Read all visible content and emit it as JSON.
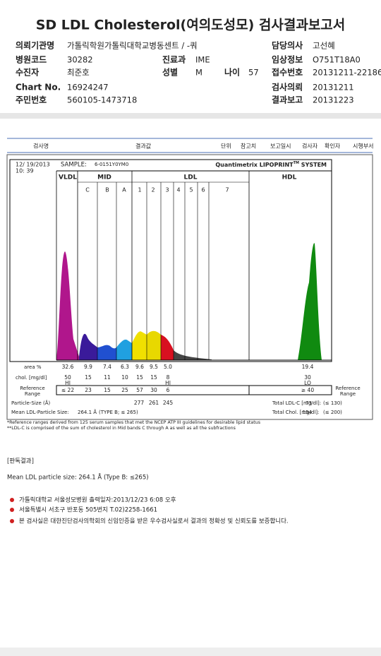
{
  "header": {
    "title": "SD LDL Cholesterol(여의도성모) 검사결과보고서"
  },
  "info": [
    [
      "의뢰기관명",
      "가톨릭학원가톨릭대학교병동센트 / -쿼"
    ],
    [
      "담당의사",
      "고선혜"
    ],
    [
      "병원코드",
      "30282"
    ],
    [
      "진료과",
      "IME"
    ],
    [
      "임상정보",
      "O751T18A0"
    ],
    [
      "수진자",
      "최준호"
    ],
    [
      "성별",
      "M"
    ],
    [
      "나이",
      "57"
    ],
    [
      "접수번호",
      "20131211-22186"
    ],
    [
      "Chart No.",
      "16924247"
    ],
    [
      "검사의뢰",
      "20131211"
    ],
    [
      "주민번호",
      "560105-1473718"
    ],
    [
      "결과보고",
      "20131223"
    ]
  ],
  "table_header": [
    "검사명",
    "결과값",
    "단위",
    "참고치",
    "보고일시",
    "검사자",
    "확인자",
    "시행부서"
  ],
  "lipoprint": {
    "date": "12/ 19/2013",
    "time": "10: 39",
    "sample_label": "SAMPLE:",
    "sample": "6-0151Y0YM0",
    "brand": "Quantimetrix LIPOPRINT",
    "brand_tm": "TM",
    "brand_suffix": " SYSTEM",
    "groups": [
      "VLDL",
      "MID",
      "LDL",
      "HDL"
    ],
    "bands": [
      "C",
      "B",
      "A",
      "1",
      "2",
      "3",
      "4",
      "5",
      "6",
      "7"
    ],
    "area": {
      "label": "area %",
      "values": [
        "32.6",
        "9.9",
        "7.4",
        "6.3",
        "9.6",
        "9.5",
        "5.0",
        "19.4"
      ]
    },
    "chol": {
      "label": "chol. [mg/dl]",
      "values": [
        "50",
        "15",
        "11",
        "10",
        "15",
        "15",
        "8",
        "30"
      ],
      "flags": [
        "HI",
        null,
        null,
        null,
        null,
        null,
        "HI",
        "LO"
      ]
    },
    "reference": {
      "label": [
        "Reference",
        "Range"
      ],
      "values": [
        "≤ 22",
        "23",
        "15",
        "25",
        "57",
        "30",
        "6",
        "≥ 40"
      ]
    },
    "particle_size": {
      "label": "Particle-Size (Å)",
      "values": [
        "277",
        "261",
        "245"
      ]
    },
    "mean": {
      "label": "Mean LDL-Particle Size:",
      "value": "264.1 Å",
      "type": "(TYPE B; ≤ 265)"
    },
    "totals": [
      {
        "label": "Total LDL-C [mg/dl]:",
        "value": "73",
        "range": "(≤ 130)"
      },
      {
        "label": "Total Chol. [mg/dl]:",
        "value": "154",
        "range": "(≤ 200)"
      }
    ],
    "footnotes": [
      "*Reference ranges derived from 125 serum samples that met the NCEP ATP III guidelines for desirable lipid status",
      "**LDL-C is comprised of the sum of cholesterol in Mid bands C through A as well as all the subfractions"
    ]
  },
  "interpretation": {
    "heading": "[판독결과]",
    "text": "Mean LDL particle size: 264.1 Å (Type B: ≤265)"
  },
  "notes": [
    "가톨릭대학교 서울성모병원      출력일자:2013/12/23 6:08 오후",
    "서울특별시 서초구 반포동 505번지 T.02)2258-1661",
    "본 검사실은 대한진단검사의학회의 신임인증을 받은 우수검사실로서 결과의 정확성 및 신뢰도를 보증합니다."
  ]
}
